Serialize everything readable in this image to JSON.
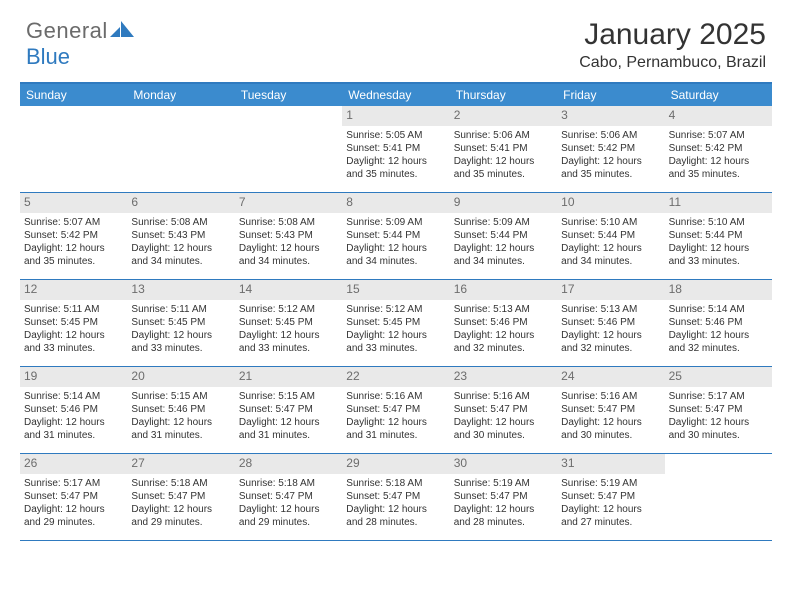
{
  "brand": {
    "name_part1": "General",
    "name_part2": "Blue"
  },
  "header": {
    "month_title": "January 2025",
    "location": "Cabo, Pernambuco, Brazil"
  },
  "colors": {
    "header_bar": "#3b8bce",
    "border": "#2f7abf",
    "daynum_bg": "#e9e9e9",
    "daynum_text": "#6d6d6d",
    "text": "#333333",
    "background": "#ffffff"
  },
  "days_of_week": [
    "Sunday",
    "Monday",
    "Tuesday",
    "Wednesday",
    "Thursday",
    "Friday",
    "Saturday"
  ],
  "weeks": [
    [
      {
        "empty": true
      },
      {
        "empty": true
      },
      {
        "empty": true
      },
      {
        "num": "1",
        "sunrise": "Sunrise: 5:05 AM",
        "sunset": "Sunset: 5:41 PM",
        "daylight": "Daylight: 12 hours and 35 minutes."
      },
      {
        "num": "2",
        "sunrise": "Sunrise: 5:06 AM",
        "sunset": "Sunset: 5:41 PM",
        "daylight": "Daylight: 12 hours and 35 minutes."
      },
      {
        "num": "3",
        "sunrise": "Sunrise: 5:06 AM",
        "sunset": "Sunset: 5:42 PM",
        "daylight": "Daylight: 12 hours and 35 minutes."
      },
      {
        "num": "4",
        "sunrise": "Sunrise: 5:07 AM",
        "sunset": "Sunset: 5:42 PM",
        "daylight": "Daylight: 12 hours and 35 minutes."
      }
    ],
    [
      {
        "num": "5",
        "sunrise": "Sunrise: 5:07 AM",
        "sunset": "Sunset: 5:42 PM",
        "daylight": "Daylight: 12 hours and 35 minutes."
      },
      {
        "num": "6",
        "sunrise": "Sunrise: 5:08 AM",
        "sunset": "Sunset: 5:43 PM",
        "daylight": "Daylight: 12 hours and 34 minutes."
      },
      {
        "num": "7",
        "sunrise": "Sunrise: 5:08 AM",
        "sunset": "Sunset: 5:43 PM",
        "daylight": "Daylight: 12 hours and 34 minutes."
      },
      {
        "num": "8",
        "sunrise": "Sunrise: 5:09 AM",
        "sunset": "Sunset: 5:44 PM",
        "daylight": "Daylight: 12 hours and 34 minutes."
      },
      {
        "num": "9",
        "sunrise": "Sunrise: 5:09 AM",
        "sunset": "Sunset: 5:44 PM",
        "daylight": "Daylight: 12 hours and 34 minutes."
      },
      {
        "num": "10",
        "sunrise": "Sunrise: 5:10 AM",
        "sunset": "Sunset: 5:44 PM",
        "daylight": "Daylight: 12 hours and 34 minutes."
      },
      {
        "num": "11",
        "sunrise": "Sunrise: 5:10 AM",
        "sunset": "Sunset: 5:44 PM",
        "daylight": "Daylight: 12 hours and 33 minutes."
      }
    ],
    [
      {
        "num": "12",
        "sunrise": "Sunrise: 5:11 AM",
        "sunset": "Sunset: 5:45 PM",
        "daylight": "Daylight: 12 hours and 33 minutes."
      },
      {
        "num": "13",
        "sunrise": "Sunrise: 5:11 AM",
        "sunset": "Sunset: 5:45 PM",
        "daylight": "Daylight: 12 hours and 33 minutes."
      },
      {
        "num": "14",
        "sunrise": "Sunrise: 5:12 AM",
        "sunset": "Sunset: 5:45 PM",
        "daylight": "Daylight: 12 hours and 33 minutes."
      },
      {
        "num": "15",
        "sunrise": "Sunrise: 5:12 AM",
        "sunset": "Sunset: 5:45 PM",
        "daylight": "Daylight: 12 hours and 33 minutes."
      },
      {
        "num": "16",
        "sunrise": "Sunrise: 5:13 AM",
        "sunset": "Sunset: 5:46 PM",
        "daylight": "Daylight: 12 hours and 32 minutes."
      },
      {
        "num": "17",
        "sunrise": "Sunrise: 5:13 AM",
        "sunset": "Sunset: 5:46 PM",
        "daylight": "Daylight: 12 hours and 32 minutes."
      },
      {
        "num": "18",
        "sunrise": "Sunrise: 5:14 AM",
        "sunset": "Sunset: 5:46 PM",
        "daylight": "Daylight: 12 hours and 32 minutes."
      }
    ],
    [
      {
        "num": "19",
        "sunrise": "Sunrise: 5:14 AM",
        "sunset": "Sunset: 5:46 PM",
        "daylight": "Daylight: 12 hours and 31 minutes."
      },
      {
        "num": "20",
        "sunrise": "Sunrise: 5:15 AM",
        "sunset": "Sunset: 5:46 PM",
        "daylight": "Daylight: 12 hours and 31 minutes."
      },
      {
        "num": "21",
        "sunrise": "Sunrise: 5:15 AM",
        "sunset": "Sunset: 5:47 PM",
        "daylight": "Daylight: 12 hours and 31 minutes."
      },
      {
        "num": "22",
        "sunrise": "Sunrise: 5:16 AM",
        "sunset": "Sunset: 5:47 PM",
        "daylight": "Daylight: 12 hours and 31 minutes."
      },
      {
        "num": "23",
        "sunrise": "Sunrise: 5:16 AM",
        "sunset": "Sunset: 5:47 PM",
        "daylight": "Daylight: 12 hours and 30 minutes."
      },
      {
        "num": "24",
        "sunrise": "Sunrise: 5:16 AM",
        "sunset": "Sunset: 5:47 PM",
        "daylight": "Daylight: 12 hours and 30 minutes."
      },
      {
        "num": "25",
        "sunrise": "Sunrise: 5:17 AM",
        "sunset": "Sunset: 5:47 PM",
        "daylight": "Daylight: 12 hours and 30 minutes."
      }
    ],
    [
      {
        "num": "26",
        "sunrise": "Sunrise: 5:17 AM",
        "sunset": "Sunset: 5:47 PM",
        "daylight": "Daylight: 12 hours and 29 minutes."
      },
      {
        "num": "27",
        "sunrise": "Sunrise: 5:18 AM",
        "sunset": "Sunset: 5:47 PM",
        "daylight": "Daylight: 12 hours and 29 minutes."
      },
      {
        "num": "28",
        "sunrise": "Sunrise: 5:18 AM",
        "sunset": "Sunset: 5:47 PM",
        "daylight": "Daylight: 12 hours and 29 minutes."
      },
      {
        "num": "29",
        "sunrise": "Sunrise: 5:18 AM",
        "sunset": "Sunset: 5:47 PM",
        "daylight": "Daylight: 12 hours and 28 minutes."
      },
      {
        "num": "30",
        "sunrise": "Sunrise: 5:19 AM",
        "sunset": "Sunset: 5:47 PM",
        "daylight": "Daylight: 12 hours and 28 minutes."
      },
      {
        "num": "31",
        "sunrise": "Sunrise: 5:19 AM",
        "sunset": "Sunset: 5:47 PM",
        "daylight": "Daylight: 12 hours and 27 minutes."
      },
      {
        "empty": true
      }
    ]
  ]
}
